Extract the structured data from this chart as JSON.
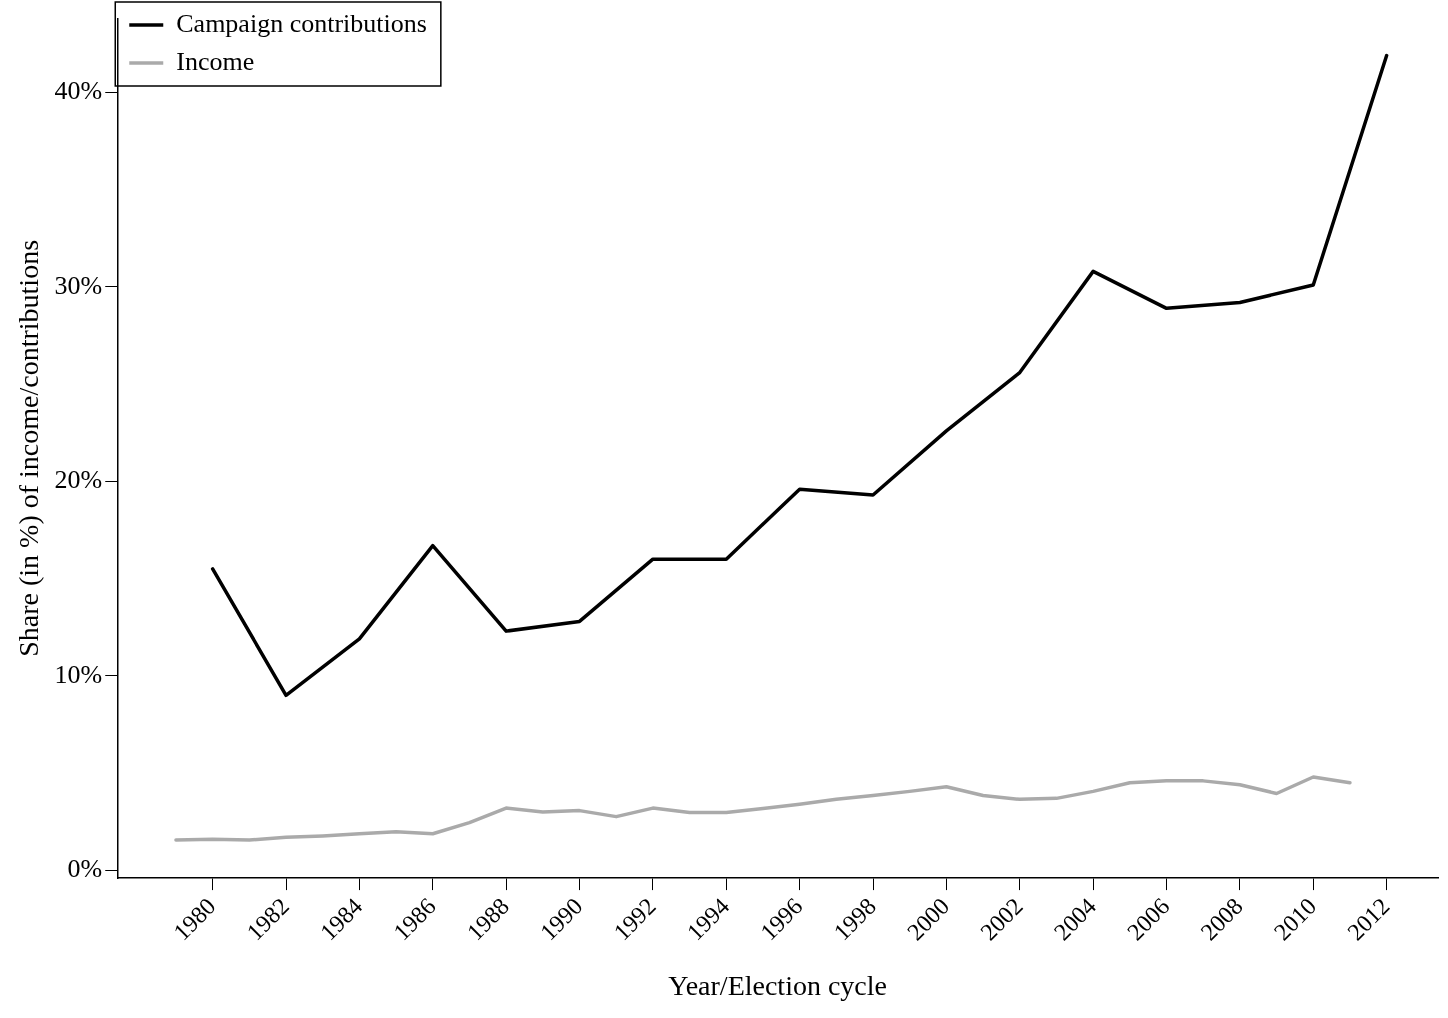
{
  "chart_data": {
    "type": "line",
    "xlabel": "Year/Election cycle",
    "ylabel": "Share (in %) of income/contributions",
    "xlim": [
      1977.4,
      2013.4
    ],
    "xticks": [
      1980,
      1982,
      1984,
      1986,
      1988,
      1990,
      1992,
      1994,
      1996,
      1998,
      2000,
      2002,
      2004,
      2006,
      2008,
      2010,
      2012
    ],
    "ylim": [
      -0.4,
      43.8
    ],
    "yticks": [
      {
        "value": 0,
        "label": "0%"
      },
      {
        "value": 10,
        "label": "10%"
      },
      {
        "value": 20,
        "label": "20%"
      },
      {
        "value": 30,
        "label": "30%"
      },
      {
        "value": 40,
        "label": "40%"
      }
    ],
    "grid": false,
    "legend": "top left",
    "marker": "none",
    "line_style": "solid",
    "series": [
      {
        "name": "Campaign contributions",
        "color": "#000000",
        "x": [
          1980,
          1982,
          1984,
          1986,
          1988,
          1990,
          1992,
          1994,
          1996,
          1998,
          2000,
          2002,
          2004,
          2006,
          2008,
          2010,
          2012
        ],
        "values": [
          15.5,
          9.0,
          11.9,
          16.7,
          12.3,
          12.8,
          16.0,
          16.0,
          19.6,
          19.3,
          22.6,
          25.6,
          30.8,
          28.9,
          29.2,
          30.1,
          41.9
        ]
      },
      {
        "name": "Income",
        "color": "#aaaaaa",
        "x": [
          1979,
          1980,
          1981,
          1982,
          1983,
          1984,
          1985,
          1986,
          1987,
          1988,
          1989,
          1990,
          1991,
          1992,
          1993,
          1994,
          1995,
          1996,
          1997,
          1998,
          1999,
          2000,
          2001,
          2002,
          2003,
          2004,
          2005,
          2006,
          2007,
          2008,
          2009,
          2010,
          2011
        ],
        "values": [
          1.56,
          1.6,
          1.56,
          1.7,
          1.77,
          1.88,
          1.98,
          1.88,
          2.45,
          3.2,
          3.0,
          3.07,
          2.76,
          3.2,
          2.97,
          2.97,
          3.18,
          3.4,
          3.65,
          3.85,
          4.06,
          4.3,
          3.85,
          3.65,
          3.7,
          4.06,
          4.5,
          4.6,
          4.6,
          4.4,
          3.95,
          4.8,
          4.5
        ]
      }
    ]
  }
}
